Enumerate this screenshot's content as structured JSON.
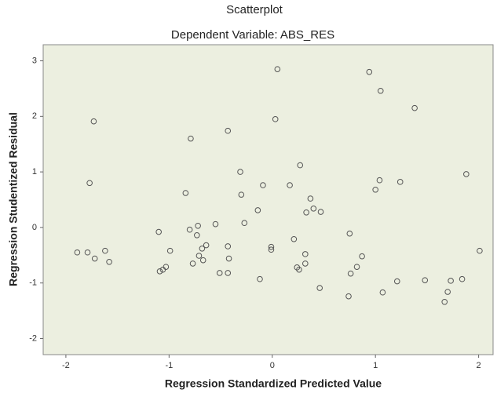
{
  "chart_data": {
    "type": "scatter",
    "title": "Scatterplot",
    "subtitle": "Dependent Variable: ABS_RES",
    "x_label": "Regression Standardized Predicted Value",
    "y_label": "Regression Studentized Residual",
    "color": "#555555",
    "background": "#ecefe0",
    "xlim": [
      -2.22,
      2.14
    ],
    "ylim": [
      -2.29,
      3.29
    ],
    "xticks": [
      -2,
      -1,
      0,
      1,
      2
    ],
    "yticks": [
      -2,
      -1,
      0,
      1,
      2,
      3
    ],
    "x": [
      -1.89,
      -1.79,
      -1.77,
      -1.73,
      -1.72,
      -1.62,
      -1.58,
      -1.1,
      -1.09,
      -1.06,
      -1.03,
      -0.99,
      -0.84,
      -0.8,
      -0.79,
      -0.77,
      -0.73,
      -0.72,
      -0.71,
      -0.68,
      -0.67,
      -0.64,
      -0.55,
      -0.51,
      -0.43,
      -0.43,
      -0.42,
      -0.43,
      -0.31,
      -0.3,
      -0.27,
      -0.14,
      -0.12,
      -0.09,
      -0.01,
      -0.01,
      0.03,
      0.05,
      0.17,
      0.21,
      0.24,
      0.26,
      0.27,
      0.32,
      0.32,
      0.33,
      0.37,
      0.4,
      0.46,
      0.47,
      0.74,
      0.75,
      0.76,
      0.82,
      0.87,
      0.94,
      1.0,
      1.04,
      1.05,
      1.07,
      1.21,
      1.24,
      1.38,
      1.48,
      1.67,
      1.7,
      1.73,
      1.84,
      1.88,
      2.01
    ],
    "values": [
      -0.45,
      -0.45,
      0.8,
      1.91,
      -0.56,
      -0.42,
      -0.62,
      -0.08,
      -0.79,
      -0.76,
      -0.71,
      -0.42,
      0.62,
      -0.04,
      1.6,
      -0.65,
      -0.14,
      0.03,
      -0.51,
      -0.38,
      -0.59,
      -0.32,
      0.06,
      -0.82,
      1.74,
      -0.34,
      -0.56,
      -0.82,
      1.0,
      0.59,
      0.08,
      0.31,
      -0.93,
      0.76,
      -0.35,
      -0.4,
      1.95,
      2.85,
      0.76,
      -0.21,
      -0.72,
      -0.76,
      1.12,
      -0.48,
      -0.65,
      0.27,
      0.52,
      0.34,
      -1.09,
      0.28,
      -1.24,
      -0.11,
      -0.83,
      -0.71,
      -0.52,
      2.8,
      0.68,
      0.85,
      2.46,
      -1.17,
      -0.97,
      0.82,
      2.15,
      -0.95,
      -1.34,
      -1.16,
      -0.96,
      -0.93,
      0.96,
      -0.42
    ]
  }
}
